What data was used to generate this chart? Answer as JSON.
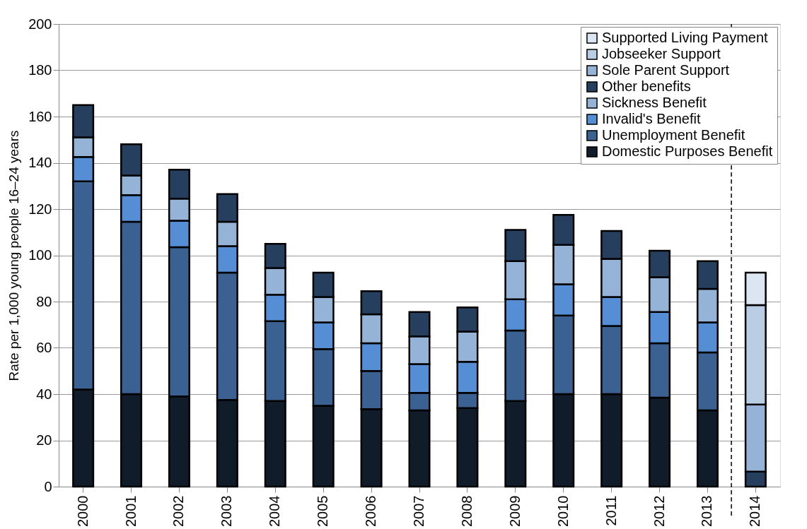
{
  "chart_data": {
    "type": "bar",
    "stacked": true,
    "ylabel": "Rate per 1,000 young people 16–24 years",
    "categories": [
      "2000",
      "2001",
      "2002",
      "2003",
      "2004",
      "2005",
      "2006",
      "2007",
      "2008",
      "2009",
      "2010",
      "2011",
      "2012",
      "2013",
      "2014"
    ],
    "series": [
      {
        "name": "Domestic Purposes Benefit",
        "color": "#111c2a",
        "values": [
          42,
          40,
          39,
          37.5,
          37,
          35,
          33.5,
          33,
          34,
          37,
          40,
          40,
          38.5,
          33,
          null
        ]
      },
      {
        "name": "Unemployment Benefit",
        "color": "#3a6191",
        "values": [
          90,
          74.5,
          64.5,
          55,
          34.5,
          24.5,
          16.5,
          7.5,
          6.5,
          30.5,
          34,
          29.5,
          23.5,
          25,
          null
        ]
      },
      {
        "name": "Invalid's Benefit",
        "color": "#558ed5",
        "values": [
          10.5,
          11.5,
          11.5,
          11.5,
          11.5,
          11.5,
          12,
          12.5,
          13.5,
          13.5,
          13.5,
          12.5,
          13.5,
          13,
          null
        ]
      },
      {
        "name": "Sickness Benefit",
        "color": "#95b3d7",
        "values": [
          8.5,
          8.5,
          9.5,
          10.5,
          11.5,
          11,
          12.5,
          12,
          13,
          16.5,
          17,
          16.5,
          15,
          14.5,
          null
        ]
      },
      {
        "name": "Other benefits",
        "color": "#263f5f",
        "values": [
          14,
          13.5,
          12.5,
          12,
          10.5,
          10.5,
          10,
          10.5,
          10.5,
          13.5,
          13,
          12,
          11.5,
          12,
          6.5
        ]
      },
      {
        "name": "Sole Parent Support",
        "color": "#95b3d7",
        "values": [
          null,
          null,
          null,
          null,
          null,
          null,
          null,
          null,
          null,
          null,
          null,
          null,
          null,
          null,
          29
        ]
      },
      {
        "name": "Jobseeker Support",
        "color": "#b9cde5",
        "values": [
          null,
          null,
          null,
          null,
          null,
          null,
          null,
          null,
          null,
          null,
          null,
          null,
          null,
          null,
          43
        ]
      },
      {
        "name": "Supported Living Payment",
        "color": "#dce6f2",
        "values": [
          null,
          null,
          null,
          null,
          null,
          null,
          null,
          null,
          null,
          null,
          null,
          null,
          null,
          null,
          14
        ]
      }
    ],
    "ylim": [
      0,
      200
    ],
    "yticks": [
      0,
      20,
      40,
      60,
      80,
      100,
      120,
      140,
      160,
      180,
      200
    ],
    "grid": "y",
    "legend": "top right",
    "ref_lines": [
      {
        "axis": "x",
        "value": "2014",
        "line_style": "dashed",
        "color": "#000000"
      }
    ]
  }
}
